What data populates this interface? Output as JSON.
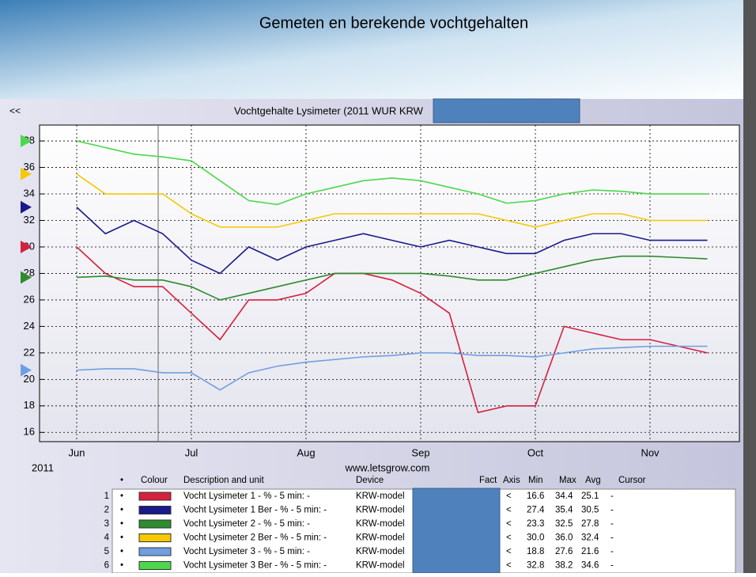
{
  "slide_title": "Gemeten en berekende vochtgehalten",
  "chart_data": {
    "type": "line",
    "title": "Vochtgehalte Lysimeter (2011 WUR KRW",
    "nav": "<<",
    "year_label": "2011",
    "source": "www.letsgrow.com",
    "categories": [
      "Jun",
      null,
      null,
      null,
      "Jul",
      null,
      null,
      null,
      "Aug",
      null,
      null,
      null,
      "Sep",
      null,
      null,
      null,
      "Oct",
      null,
      null,
      null,
      "Nov",
      null,
      null
    ],
    "series": [
      {
        "name": "Vocht Lysimeter 1 - % - 5 min: -",
        "color": "#d6203c",
        "values": [
          30,
          28,
          27,
          27,
          25,
          23,
          26,
          26,
          26.5,
          28,
          28,
          27.5,
          26.5,
          25,
          17.5,
          18,
          18,
          24,
          23.5,
          23,
          23,
          22.5,
          22
        ]
      },
      {
        "name": "Vocht Lysimeter 1 Ber - % - 5 min: -",
        "color": "#1a1a8a",
        "values": [
          33,
          31,
          32,
          31,
          29,
          28,
          30,
          29,
          30,
          30.5,
          31,
          30.5,
          30,
          30.5,
          30,
          29.5,
          29.5,
          30.5,
          31,
          31,
          30.5,
          30.5,
          30.5
        ]
      },
      {
        "name": "Vocht Lysimeter 2 - % - 5 min: -",
        "color": "#2e8b2e",
        "values": [
          27.7,
          27.8,
          27.5,
          27.5,
          27,
          26,
          26.5,
          27,
          27.5,
          28,
          28,
          28,
          28,
          27.8,
          27.5,
          27.5,
          28,
          28.5,
          29,
          29.3,
          29.3,
          29.2,
          29.1
        ]
      },
      {
        "name": "Vocht Lysimeter 2 Ber - % - 5 min: -",
        "color": "#f5c800",
        "values": [
          35.5,
          34,
          34,
          34,
          32.5,
          31.5,
          31.5,
          31.5,
          32,
          32.5,
          32.5,
          32.5,
          32.5,
          32.5,
          32.5,
          32,
          31.5,
          32,
          32.5,
          32.5,
          32,
          32,
          32
        ]
      },
      {
        "name": "Vocht Lysimeter 3 - % - 5 min: -",
        "color": "#6f9fe0",
        "values": [
          20.7,
          20.8,
          20.8,
          20.5,
          20.5,
          19.2,
          20.5,
          21,
          21.3,
          21.5,
          21.7,
          21.8,
          22,
          22,
          21.8,
          21.8,
          21.7,
          22,
          22.3,
          22.4,
          22.5,
          22.5,
          22.5
        ]
      },
      {
        "name": "Vocht Lysimeter 3 Ber - % - 5 min: -",
        "color": "#4cd84c",
        "values": [
          38,
          37.5,
          37,
          36.8,
          36.5,
          35,
          33.5,
          33.2,
          34,
          34.5,
          35,
          35.2,
          35,
          34.5,
          34,
          33.3,
          33.5,
          34,
          34.3,
          34.2,
          34,
          34,
          34
        ]
      }
    ],
    "ylim": [
      15.3,
      39.2
    ],
    "yticks": [
      16,
      18,
      20,
      22,
      24,
      26,
      28,
      30,
      32,
      34,
      36,
      38
    ],
    "grid": true,
    "legend_table": {
      "headers": [
        "•",
        "Colour",
        "Description and unit",
        "Device",
        "Fact",
        "Axis",
        "Min",
        "Max",
        "Avg",
        "Cursor"
      ],
      "rows": [
        {
          "index": 1,
          "bullet": "•",
          "device": "KRW-model",
          "axis": "<",
          "min": "16.6",
          "max": "34.4",
          "avg": "25.1",
          "cursor": "-"
        },
        {
          "index": 2,
          "bullet": "•",
          "device": "KRW-model",
          "axis": "<",
          "min": "27.4",
          "max": "35.4",
          "avg": "30.5",
          "cursor": "-"
        },
        {
          "index": 3,
          "bullet": "•",
          "device": "KRW-model",
          "axis": "<",
          "min": "23.3",
          "max": "32.5",
          "avg": "27.8",
          "cursor": "-"
        },
        {
          "index": 4,
          "bullet": "•",
          "device": "KRW-model",
          "axis": "<",
          "min": "30.0",
          "max": "36.0",
          "avg": "32.4",
          "cursor": "-"
        },
        {
          "index": 5,
          "bullet": "•",
          "device": "KRW-model",
          "axis": "<",
          "min": "18.8",
          "max": "27.6",
          "avg": "21.6",
          "cursor": "-"
        },
        {
          "index": 6,
          "bullet": "•",
          "device": "KRW-model",
          "axis": "<",
          "min": "32.8",
          "max": "38.2",
          "avg": "34.6",
          "cursor": "-"
        }
      ]
    }
  }
}
